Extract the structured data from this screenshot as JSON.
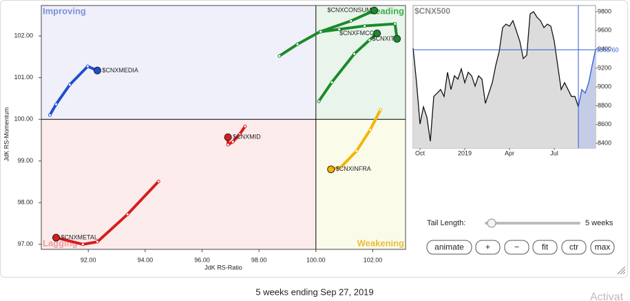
{
  "chart_data": [
    {
      "type": "rrg",
      "x_label": "JdK RS-Ratio",
      "y_label": "JdK RS-Momentum",
      "xlim": [
        90.35,
        103.15
      ],
      "ylim": [
        96.88,
        102.73
      ],
      "xticks": [
        {
          "value": 92,
          "label": "92.00"
        },
        {
          "value": 94,
          "label": "94.00"
        },
        {
          "value": 96,
          "label": "96.00"
        },
        {
          "value": 98,
          "label": "98.00"
        },
        {
          "value": 100,
          "label": "100.00"
        },
        {
          "value": 102,
          "label": "102.00"
        }
      ],
      "yticks": [
        {
          "value": 97,
          "label": "97.00"
        },
        {
          "value": 98,
          "label": "98.00"
        },
        {
          "value": 99,
          "label": "99.00"
        },
        {
          "value": 100,
          "label": "100.00"
        },
        {
          "value": 101,
          "label": "101.00"
        },
        {
          "value": 102,
          "label": "102.00"
        }
      ],
      "center": [
        100,
        100
      ],
      "quadrants": {
        "improving": "Improving",
        "leading": "Leading",
        "weakening": "Weakening",
        "lagging": "Lagging"
      },
      "series": [
        {
          "name": "$CNXMEDIA",
          "color": "#1f4fd0",
          "x": [
            90.65,
            90.87,
            91.35,
            91.98,
            92.32
          ],
          "y": [
            100.1,
            100.36,
            100.83,
            101.27,
            101.17
          ]
        },
        {
          "name": "$CNXCONSUM",
          "color": "#1a8a2a",
          "x": [
            98.72,
            99.35,
            100.14,
            101.23,
            102.05
          ],
          "y": [
            101.52,
            101.8,
            102.1,
            102.36,
            102.61
          ]
        },
        {
          "name": "$CNXFMCG",
          "color": "#1a8a2a",
          "x": [
            100.1,
            100.56,
            101.35,
            101.88,
            102.15
          ],
          "y": [
            100.43,
            100.89,
            101.57,
            101.9,
            102.06
          ]
        },
        {
          "name": "$CNXIT",
          "color": "#1a8a2a",
          "x": [
            100.17,
            100.82,
            101.71,
            102.78,
            102.85
          ],
          "y": [
            102.1,
            102.16,
            102.24,
            102.29,
            101.93
          ]
        },
        {
          "name": "$CNXMID",
          "color": "#d81c1c",
          "x": [
            97.51,
            97.32,
            97.08,
            96.91,
            96.91
          ],
          "y": [
            99.83,
            99.64,
            99.46,
            99.39,
            99.57
          ]
        },
        {
          "name": "$CNXMETAL",
          "color": "#d81c1c",
          "x": [
            94.47,
            93.38,
            92.32,
            91.81,
            90.87
          ],
          "y": [
            98.51,
            97.72,
            97.06,
            97.0,
            97.16
          ]
        },
        {
          "name": "$CNXINFRA",
          "color": "#f5b400",
          "x": [
            102.27,
            101.91,
            101.43,
            100.89,
            100.53
          ],
          "y": [
            100.23,
            99.75,
            99.24,
            98.86,
            98.8
          ]
        }
      ]
    },
    {
      "type": "line",
      "title": "$CNX500",
      "color": "#111111",
      "highlight_color": "#2a5bd7",
      "highlight_from": 48,
      "values": [
        9411,
        9045,
        8605,
        8788,
        8678,
        8422,
        8898,
        8935,
        8972,
        8898,
        9155,
        8972,
        9118,
        9082,
        9192,
        9045,
        9155,
        9118,
        9008,
        9118,
        9082,
        8825,
        8935,
        9045,
        9228,
        9375,
        9631,
        9668,
        9646,
        9705,
        9595,
        9485,
        9302,
        9338,
        9778,
        9800,
        9741,
        9705,
        9631,
        9668,
        9646,
        9485,
        9228,
        8972,
        9045,
        8972,
        8898,
        8898,
        8788,
        8972,
        8935,
        9045,
        9228,
        9395.6
      ],
      "xlim": [
        0,
        53
      ],
      "xticks": [
        {
          "value": 2,
          "label": "Oct"
        },
        {
          "value": 15,
          "label": "2019"
        },
        {
          "value": 28,
          "label": "Apr"
        },
        {
          "value": 41,
          "label": "Jul"
        }
      ],
      "ylim": [
        8349,
        9866
      ],
      "yticks": [
        8400,
        8600,
        8800,
        9000,
        9200,
        9400,
        9600,
        9800
      ],
      "current": {
        "value": 9395.6,
        "label": "9395.60"
      }
    }
  ],
  "controls": {
    "tail_label": "Tail Length:",
    "tail_value": "5 weeks",
    "buttons": [
      "animate",
      "+",
      "−",
      "fit",
      "ctr",
      "max"
    ]
  },
  "footer": "5 weeks ending Sep 27, 2019",
  "watermark": "Activat"
}
